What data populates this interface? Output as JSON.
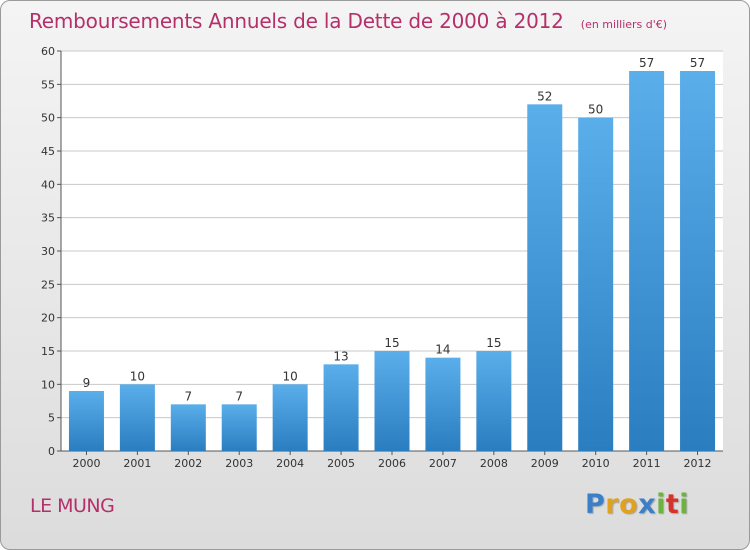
{
  "header": {
    "title": "Remboursements Annuels de la Dette de 2000 à 2012",
    "unit": "(en milliers d'€)"
  },
  "footer": {
    "commune": "LE MUNG",
    "logo_text": "Proxiti",
    "logo_colors": [
      "#3a7fc8",
      "#e0a21e",
      "#e0a21e",
      "#3a7fc8",
      "#6cb33f",
      "#d4322c",
      "#6cb33f"
    ]
  },
  "colors": {
    "bar_top": "#5aaeea",
    "bar_bottom": "#2a7ec0",
    "title": "#b5306a",
    "grid": "#c8c8c8"
  },
  "chart_data": {
    "type": "bar",
    "title": "Remboursements Annuels de la Dette de 2000 à 2012",
    "subtitle": "(en milliers d'€)",
    "xlabel": "",
    "ylabel": "",
    "categories": [
      "2000",
      "2001",
      "2002",
      "2003",
      "2004",
      "2005",
      "2006",
      "2007",
      "2008",
      "2009",
      "2010",
      "2011",
      "2012"
    ],
    "values": [
      9,
      10,
      7,
      7,
      10,
      13,
      15,
      14,
      15,
      52,
      50,
      57,
      57
    ],
    "data_labels": [
      "9",
      "10",
      "7",
      "7",
      "10",
      "13",
      "15",
      "14",
      "15",
      "52",
      "50",
      "57",
      "57"
    ],
    "ylim": [
      0,
      60
    ],
    "yticks": [
      0,
      5,
      10,
      15,
      20,
      25,
      30,
      35,
      40,
      45,
      50,
      55,
      60
    ],
    "grid": true,
    "legend": "none"
  }
}
